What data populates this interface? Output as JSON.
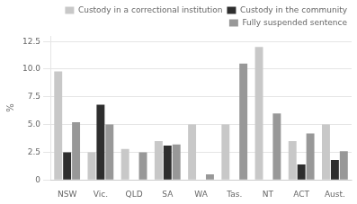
{
  "chart_data": {
    "type": "bar",
    "categories": [
      "NSW",
      "Vic.",
      "QLD",
      "SA",
      "WA",
      "Tas.",
      "NT",
      "ACT",
      "Aust."
    ],
    "series": [
      {
        "name": "Custody in a correctional institution",
        "color": "#c8c8c8",
        "values": [
          9.8,
          2.5,
          2.8,
          3.5,
          5.0,
          5.0,
          12.0,
          3.5,
          5.0
        ]
      },
      {
        "name": "Custody in the community",
        "color": "#2e2e2e",
        "values": [
          2.5,
          6.8,
          0.0,
          3.1,
          0.0,
          0.0,
          0.0,
          1.4,
          1.8
        ]
      },
      {
        "name": "Fully suspended sentence",
        "color": "#989898",
        "values": [
          5.2,
          5.0,
          2.5,
          3.2,
          0.5,
          10.5,
          6.0,
          4.2,
          2.6
        ]
      }
    ],
    "ylabel": "%",
    "ylim": [
      0,
      13.0
    ],
    "yticks": [
      0,
      2.5,
      {
        "value": 5.0,
        "label": "5.0"
      },
      7.5,
      {
        "value": 10.0,
        "label": "10.0"
      },
      12.5
    ],
    "grid": true,
    "legend": "upper right"
  }
}
